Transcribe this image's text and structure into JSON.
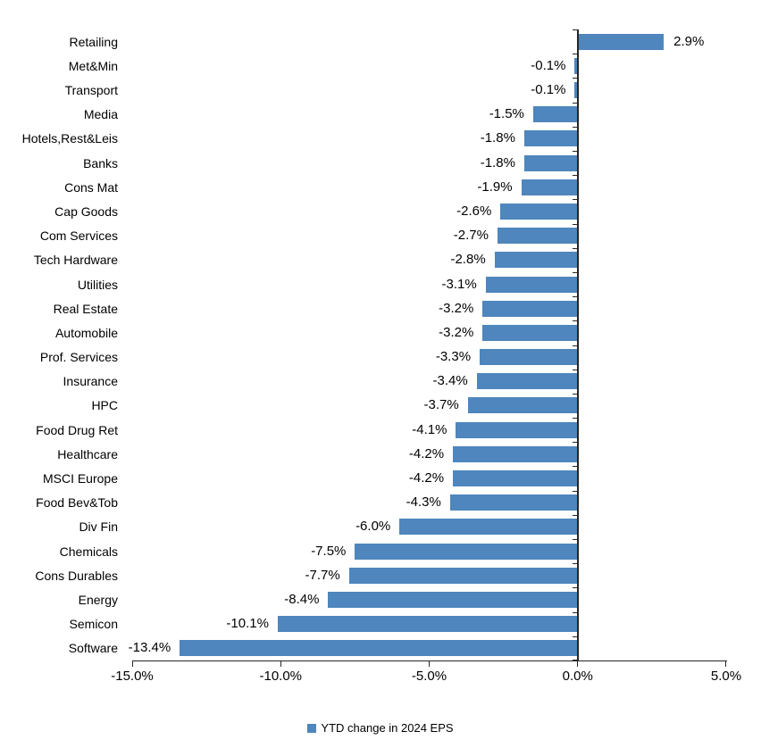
{
  "chart_data": {
    "type": "bar",
    "orientation": "horizontal",
    "title": "",
    "legend": "YTD change in 2024 EPS",
    "legend_position": "bottom-center",
    "grid": false,
    "xlim": [
      -15,
      5
    ],
    "bar_color": "#4e86bd",
    "axis_color": "#262626",
    "categories": [
      "Retailing",
      "Met&Min",
      "Transport",
      "Media",
      "Hotels,Rest&Leis",
      "Banks",
      "Cons Mat",
      "Cap Goods",
      "Com Services",
      "Tech Hardware",
      "Utilities",
      "Real Estate",
      "Automobile",
      "Prof. Services",
      "Insurance",
      "HPC",
      "Food Drug Ret",
      "Healthcare",
      "MSCI Europe",
      "Food Bev&Tob",
      "Div Fin",
      "Chemicals",
      "Cons Durables",
      "Energy",
      "Semicon",
      "Software"
    ],
    "values": [
      2.9,
      -0.1,
      -0.1,
      -1.5,
      -1.8,
      -1.8,
      -1.9,
      -2.6,
      -2.7,
      -2.8,
      -3.1,
      -3.2,
      -3.2,
      -3.3,
      -3.4,
      -3.7,
      -4.1,
      -4.2,
      -4.2,
      -4.3,
      -6.0,
      -7.5,
      -7.7,
      -8.4,
      -10.1,
      -13.4
    ],
    "labels": [
      "2.9%",
      "-0.1%",
      "-0.1%",
      "-1.5%",
      "-1.8%",
      "-1.8%",
      "-1.9%",
      "-2.6%",
      "-2.7%",
      "-2.8%",
      "-3.1%",
      "-3.2%",
      "-3.2%",
      "-3.3%",
      "-3.4%",
      "-3.7%",
      "-4.1%",
      "-4.2%",
      "-4.2%",
      "-4.3%",
      "-6.0%",
      "-7.5%",
      "-7.7%",
      "-8.4%",
      "-10.1%",
      "-13.4%"
    ],
    "x_ticks": [
      {
        "label": "-15.0%",
        "value": -15
      },
      {
        "label": "-10.0%",
        "value": -10
      },
      {
        "label": "-5.0%",
        "value": -5
      },
      {
        "label": "0.0%",
        "value": 0
      },
      {
        "label": "5.0%",
        "value": 5
      }
    ]
  }
}
